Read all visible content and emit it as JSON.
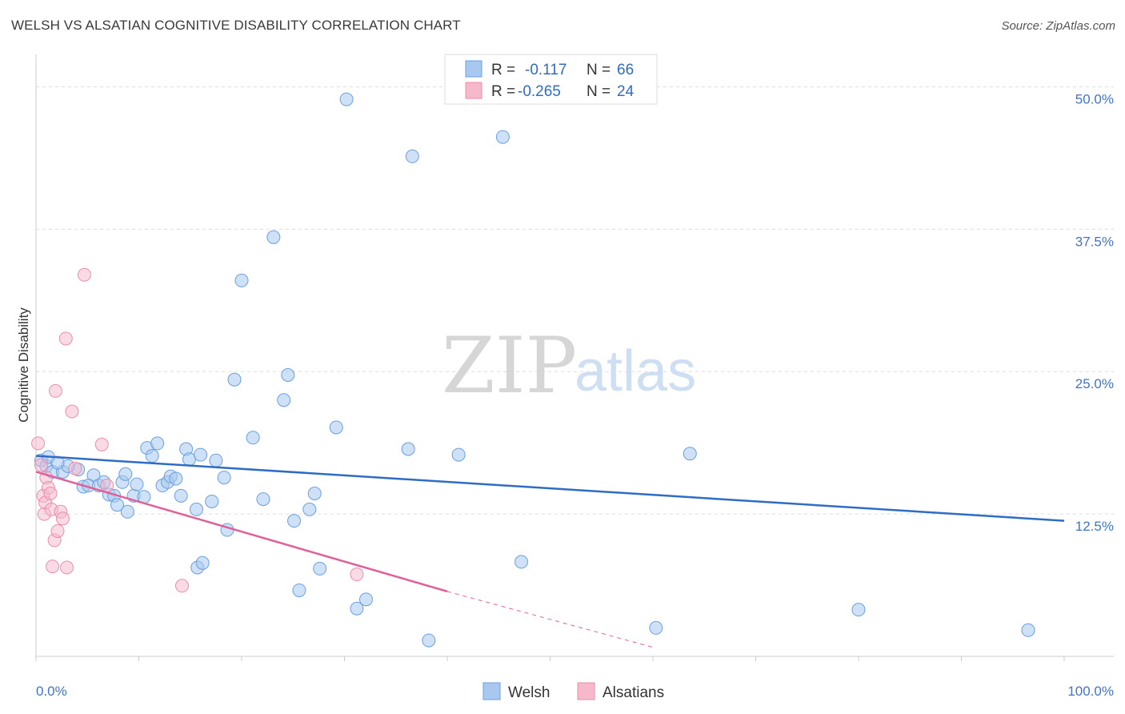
{
  "title": "WELSH VS ALSATIAN COGNITIVE DISABILITY CORRELATION CHART",
  "source": "Source: ZipAtlas.com",
  "watermark": {
    "part1": "ZIP",
    "part2": "atlas"
  },
  "colors": {
    "welsh_fill": "#a8c8f0",
    "welsh_stroke": "#6a9fe0",
    "welsh_line": "#2f6cc4",
    "alsatian_fill": "#f6b8cb",
    "alsatian_stroke": "#ec8eab",
    "alsatian_line": "#e0609a",
    "tick_text": "#3f74c9",
    "grid": "#dddddd"
  },
  "legend": {
    "r_label": "R =",
    "n_label": "N =",
    "rows": [
      {
        "series": "Welsh",
        "r": "-0.117",
        "n": "66"
      },
      {
        "series": "Alsatians",
        "r": "-0.265",
        "n": "24"
      }
    ]
  },
  "chart_data": {
    "type": "scatter",
    "title": "WELSH VS ALSATIAN COGNITIVE DISABILITY CORRELATION CHART",
    "xlabel": "",
    "ylabel": "Cognitive Disability",
    "xlim": [
      0,
      100
    ],
    "ylim": [
      0,
      52
    ],
    "x_tick_labels": [
      "0.0%",
      "100.0%"
    ],
    "y_ticks": [
      12.5,
      25.0,
      37.5,
      50.0
    ],
    "y_tick_labels": [
      "12.5%",
      "25.0%",
      "37.5%",
      "50.0%"
    ],
    "grid": true,
    "legend_position": "top-center",
    "series": [
      {
        "name": "Welsh",
        "points": [
          [
            0.5,
            17.2
          ],
          [
            1.0,
            16.7
          ],
          [
            1.6,
            16.2
          ],
          [
            2.6,
            16.2
          ],
          [
            4.1,
            16.4
          ],
          [
            5.6,
            15.9
          ],
          [
            4.6,
            14.9
          ],
          [
            5.1,
            15.0
          ],
          [
            6.1,
            15.0
          ],
          [
            6.6,
            15.3
          ],
          [
            7.1,
            14.2
          ],
          [
            7.6,
            14.1
          ],
          [
            7.9,
            13.3
          ],
          [
            8.4,
            15.3
          ],
          [
            8.9,
            12.7
          ],
          [
            8.7,
            16.0
          ],
          [
            9.5,
            14.1
          ],
          [
            9.8,
            15.1
          ],
          [
            10.5,
            14.0
          ],
          [
            10.8,
            18.3
          ],
          [
            11.3,
            17.6
          ],
          [
            11.8,
            18.7
          ],
          [
            12.3,
            15.0
          ],
          [
            12.8,
            15.3
          ],
          [
            13.1,
            15.8
          ],
          [
            13.6,
            15.6
          ],
          [
            14.1,
            14.1
          ],
          [
            14.6,
            18.2
          ],
          [
            14.9,
            17.3
          ],
          [
            15.6,
            12.9
          ],
          [
            16.0,
            17.7
          ],
          [
            17.1,
            13.6
          ],
          [
            17.5,
            17.2
          ],
          [
            18.3,
            15.7
          ],
          [
            18.6,
            11.1
          ],
          [
            19.3,
            24.3
          ],
          [
            20.0,
            33.0
          ],
          [
            21.1,
            19.2
          ],
          [
            22.1,
            13.8
          ],
          [
            23.1,
            36.8
          ],
          [
            24.1,
            22.5
          ],
          [
            24.5,
            24.7
          ],
          [
            25.1,
            11.9
          ],
          [
            25.6,
            5.8
          ],
          [
            26.6,
            12.9
          ],
          [
            27.1,
            14.3
          ],
          [
            27.6,
            7.7
          ],
          [
            29.2,
            20.1
          ],
          [
            30.2,
            48.9
          ],
          [
            31.2,
            4.2
          ],
          [
            32.1,
            5.0
          ],
          [
            36.2,
            18.2
          ],
          [
            36.6,
            43.9
          ],
          [
            38.2,
            1.4
          ],
          [
            41.1,
            17.7
          ],
          [
            45.4,
            45.6
          ],
          [
            47.2,
            8.3
          ],
          [
            63.6,
            17.8
          ],
          [
            80.0,
            4.1
          ],
          [
            96.5,
            2.3
          ],
          [
            60.3,
            2.5
          ],
          [
            15.7,
            7.8
          ],
          [
            16.2,
            8.2
          ],
          [
            3.1,
            16.7
          ],
          [
            1.2,
            17.5
          ],
          [
            2.1,
            17.0
          ]
        ]
      },
      {
        "name": "Alsatians",
        "points": [
          [
            0.2,
            18.7
          ],
          [
            0.5,
            16.8
          ],
          [
            0.7,
            14.1
          ],
          [
            0.8,
            12.5
          ],
          [
            0.9,
            13.5
          ],
          [
            1.0,
            15.7
          ],
          [
            1.2,
            14.8
          ],
          [
            1.4,
            14.3
          ],
          [
            1.5,
            12.9
          ],
          [
            1.6,
            7.9
          ],
          [
            1.8,
            10.2
          ],
          [
            1.9,
            23.3
          ],
          [
            2.1,
            11.0
          ],
          [
            2.4,
            12.7
          ],
          [
            2.6,
            12.1
          ],
          [
            2.9,
            27.9
          ],
          [
            3.0,
            7.8
          ],
          [
            3.5,
            21.5
          ],
          [
            3.8,
            16.5
          ],
          [
            4.7,
            33.5
          ],
          [
            6.4,
            18.6
          ],
          [
            6.9,
            15.0
          ],
          [
            14.2,
            6.2
          ],
          [
            31.2,
            7.2
          ]
        ]
      }
    ],
    "trend_lines": [
      {
        "series": "Welsh",
        "x": [
          0,
          100
        ],
        "y": [
          17.6,
          11.9
        ]
      },
      {
        "series": "Alsatians",
        "x": [
          0,
          40
        ],
        "y": [
          16.2,
          5.7
        ],
        "dashed_extension_to": [
          60,
          0.8
        ]
      }
    ]
  }
}
